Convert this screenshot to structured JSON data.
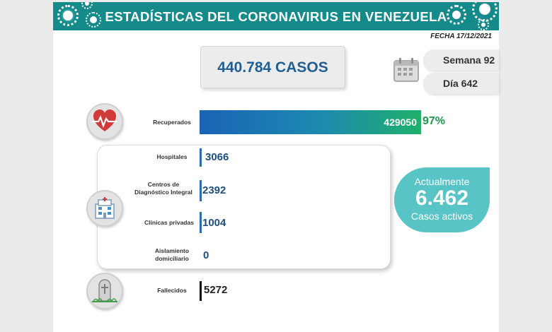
{
  "header": {
    "title": "ESTADÍSTICAS DEL CORONAVIRUS EN VENEZUELA"
  },
  "fecha": "FECHA 17/12/2021",
  "casos": "440.784 CASOS",
  "semana": "Semana 92",
  "dia": "Día 642",
  "recuperados": {
    "label": "Recuperados",
    "value": "429050",
    "percent": "97%"
  },
  "hospitales": {
    "label": "Hospitales",
    "value": "3066"
  },
  "cdi": {
    "label_line1": "Centros de",
    "label_line2": "Diagnóstico Integral",
    "value": "2392"
  },
  "clinicas": {
    "label": "Clínicas privadas",
    "value": "1004"
  },
  "aislamiento": {
    "label_line1": "Aislamiento",
    "label_line2": "domiciliario",
    "value": "0"
  },
  "fallecidos": {
    "label": "Fallecidos",
    "value": "5272"
  },
  "activos": {
    "line1": "Actualmente",
    "value": "6.462",
    "line3": "Casos activos"
  },
  "icons": {
    "header_decor": "virus-icon",
    "calendar": "calendar-icon",
    "recuperados": "heart-pulse-icon",
    "centros": "hospital-icon",
    "fallecidos": "tombstone-icon"
  },
  "colors": {
    "header": "#158a8a",
    "accent_blue": "#1f5f94",
    "accent_green": "#1d9b4b",
    "activos_bg": "#58c4c6"
  }
}
